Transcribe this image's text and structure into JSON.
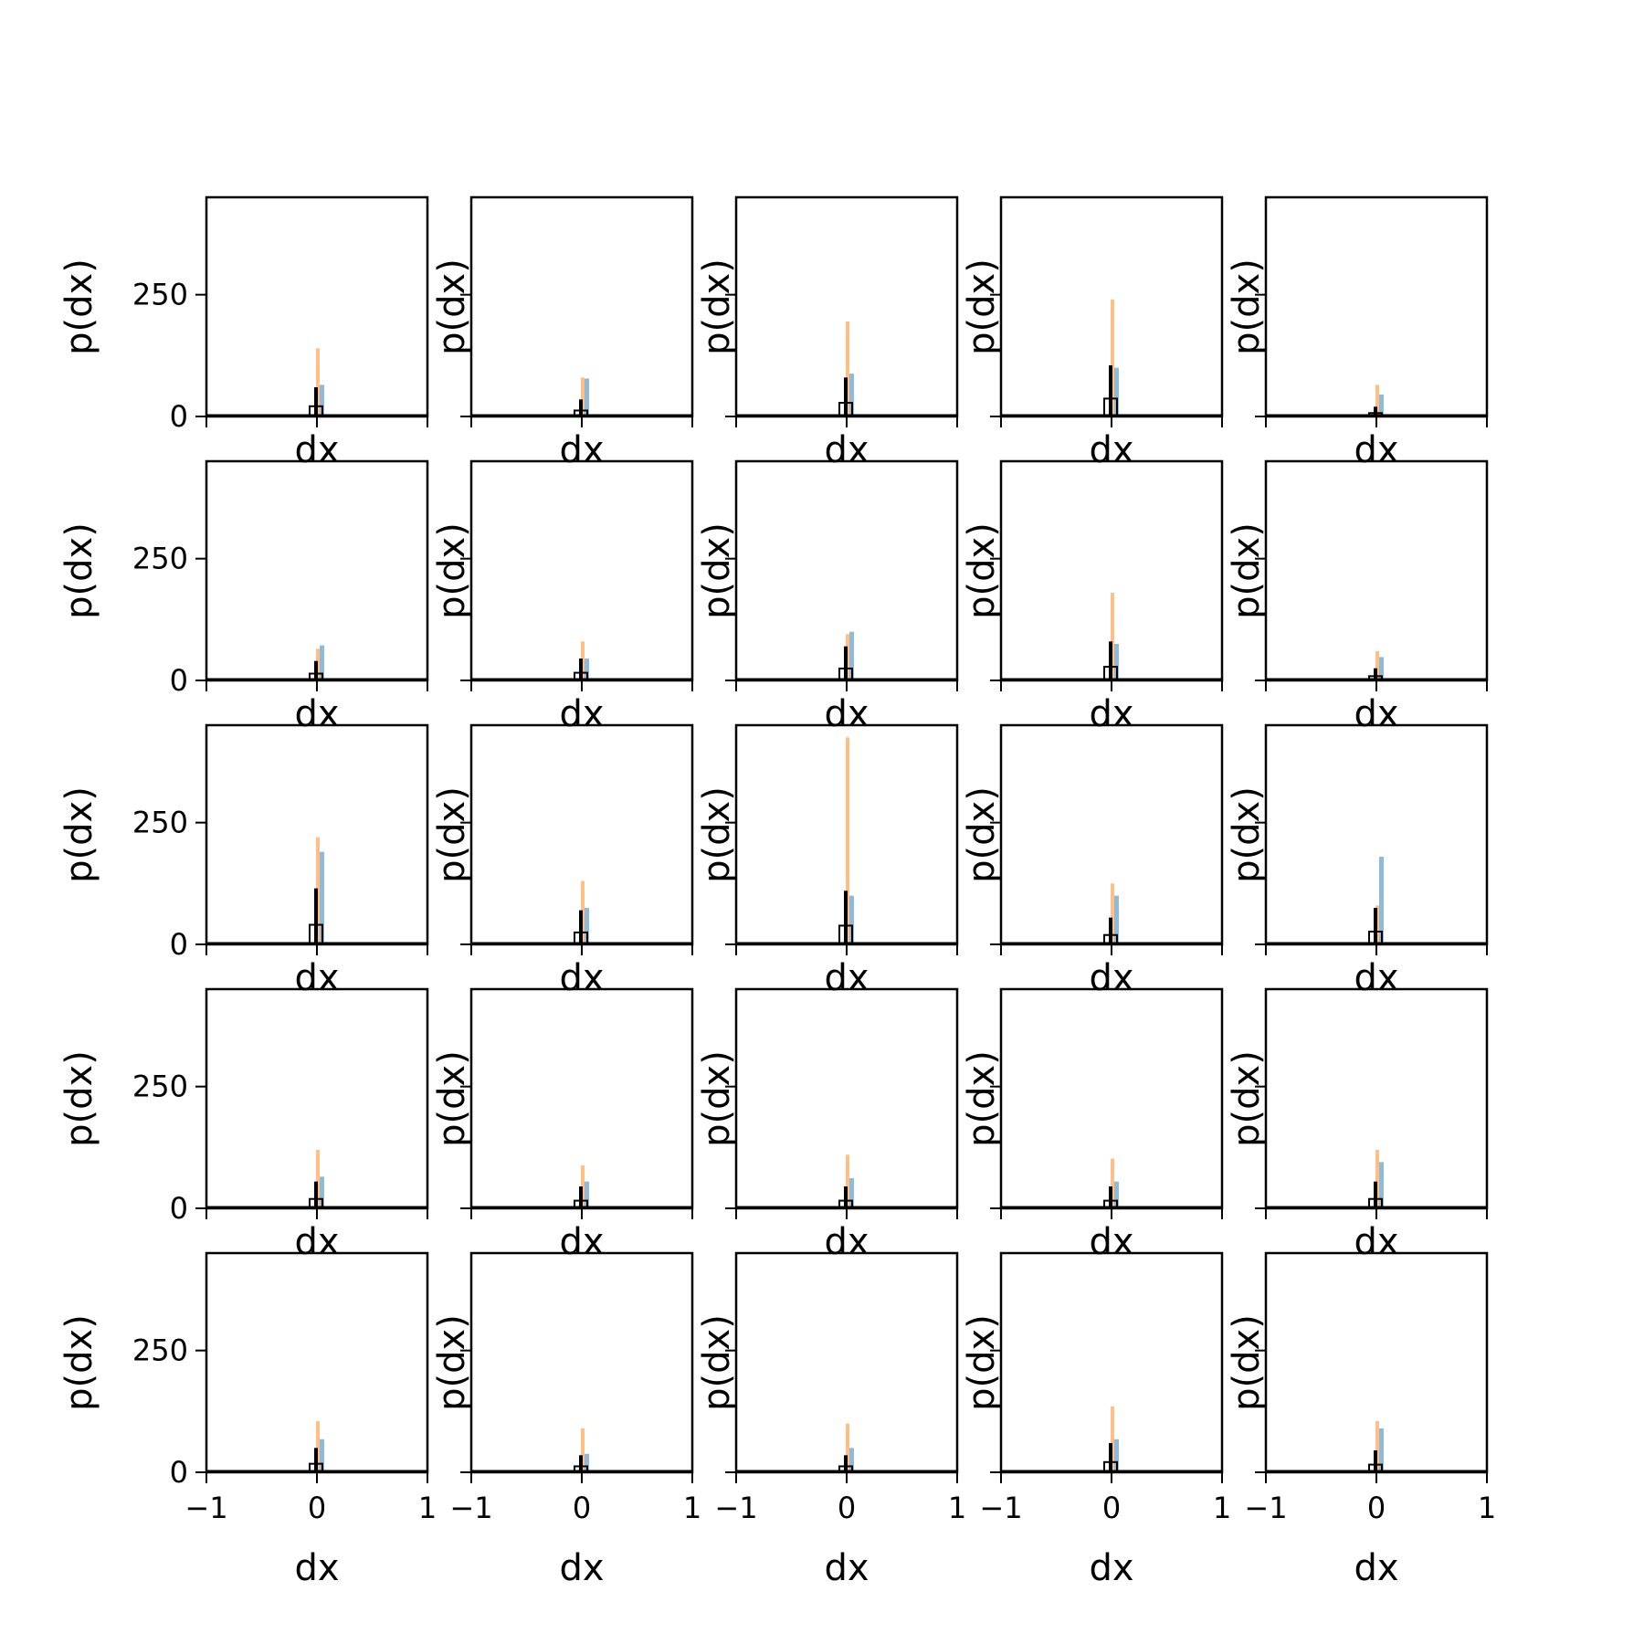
{
  "chart_data": {
    "type": "histogram-grid",
    "rows": 5,
    "cols": 5,
    "xlabel": "dx",
    "ylabel": "p(dx)",
    "xlim": [
      -1,
      1
    ],
    "ylim": [
      0,
      450
    ],
    "xticks": [
      -1,
      0,
      1
    ],
    "xtick_labels": [
      "−1",
      "0",
      "1"
    ],
    "yticks": [
      0,
      250
    ],
    "ytick_labels": [
      "0",
      "250"
    ],
    "colors": {
      "blue": "#1f77b4",
      "orange": "#ff7f0e",
      "black": "#000000"
    },
    "subplots": [
      {
        "orange": 140,
        "blue": 65,
        "black": 60
      },
      {
        "orange": 80,
        "blue": 78,
        "black": 35
      },
      {
        "orange": 195,
        "blue": 88,
        "black": 80
      },
      {
        "orange": 240,
        "blue": 100,
        "black": 105
      },
      {
        "orange": 65,
        "blue": 45,
        "black": 20
      },
      {
        "orange": 65,
        "blue": 72,
        "black": 40
      },
      {
        "orange": 80,
        "blue": 45,
        "black": 45
      },
      {
        "orange": 95,
        "blue": 100,
        "black": 70
      },
      {
        "orange": 180,
        "blue": 75,
        "black": 80
      },
      {
        "orange": 60,
        "blue": 48,
        "black": 25
      },
      {
        "orange": 220,
        "blue": 190,
        "black": 115
      },
      {
        "orange": 130,
        "blue": 75,
        "black": 70
      },
      {
        "orange": 425,
        "blue": 100,
        "black": 110
      },
      {
        "orange": 125,
        "blue": 100,
        "black": 55
      },
      {
        "orange": 80,
        "blue": 180,
        "black": 75
      },
      {
        "orange": 120,
        "blue": 65,
        "black": 55
      },
      {
        "orange": 88,
        "blue": 55,
        "black": 45
      },
      {
        "orange": 110,
        "blue": 62,
        "black": 45
      },
      {
        "orange": 102,
        "blue": 55,
        "black": 45
      },
      {
        "orange": 120,
        "blue": 95,
        "black": 55
      },
      {
        "orange": 105,
        "blue": 68,
        "black": 50
      },
      {
        "orange": 90,
        "blue": 38,
        "black": 35
      },
      {
        "orange": 100,
        "blue": 50,
        "black": 35
      },
      {
        "orange": 135,
        "blue": 68,
        "black": 60
      },
      {
        "orange": 105,
        "blue": 90,
        "black": 45
      }
    ]
  }
}
